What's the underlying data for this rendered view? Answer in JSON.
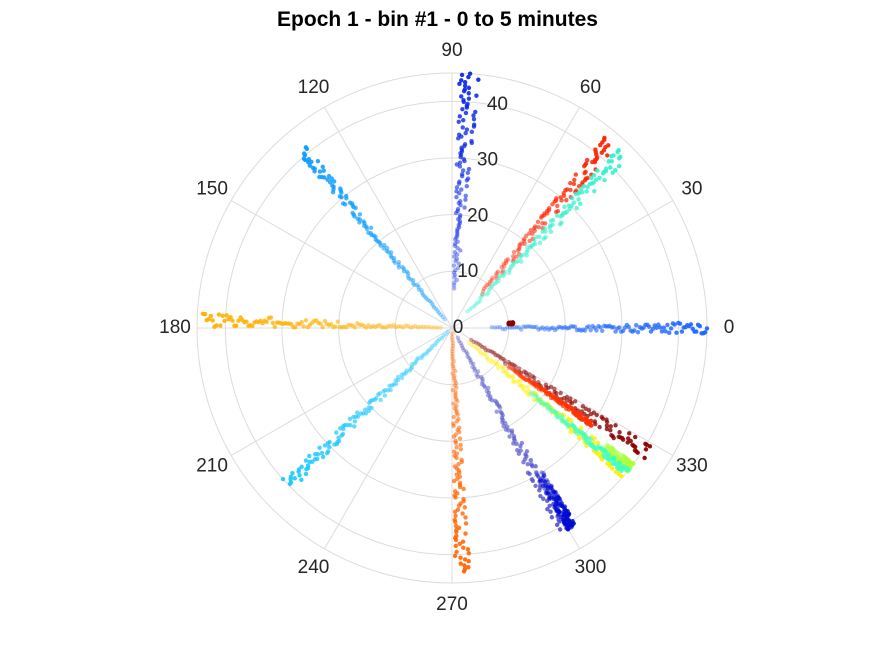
{
  "chart_data": {
    "type": "scatter",
    "subtype": "polar",
    "title": "Epoch 1 - bin #1 - 0 to 5 minutes",
    "angular_axis": {
      "unit": "degrees",
      "direction": "counterclockwise",
      "zero_location": "right",
      "ticks": [
        0,
        30,
        60,
        90,
        120,
        150,
        180,
        210,
        240,
        270,
        300,
        330
      ]
    },
    "radial_axis": {
      "range": [
        0,
        45
      ],
      "ticks": [
        0,
        10,
        20,
        30,
        40
      ],
      "tick_label_angle_deg": 80
    },
    "grid": true,
    "legend": "none",
    "series": [
      {
        "color": "#0a28e6",
        "theta": [
          84,
          86,
          87,
          88
        ],
        "r_start": 7,
        "r_end": 45
      },
      {
        "color": "#ff2200",
        "theta": [
          48,
          49.5,
          50.5,
          51
        ],
        "r_start": 8,
        "r_end": 43
      },
      {
        "color": "#33f0cc",
        "theta": [
          44,
          45.5,
          46,
          47
        ],
        "r_start": 4,
        "r_end": 43
      },
      {
        "color": "#1e66ff",
        "theta": [
          -1,
          0,
          0.5,
          1
        ],
        "r_start": 7,
        "r_end": 45
      },
      {
        "color": "#8b0000",
        "theta": [
          4,
          4.5,
          5
        ],
        "r_start": 10,
        "r_end": 10.8
      },
      {
        "color": "#0c9cff",
        "theta": [
          129,
          130,
          130.5,
          131
        ],
        "r_start": 2,
        "r_end": 41
      },
      {
        "color": "#ffb000",
        "theta": [
          177,
          178,
          178.5,
          179.5
        ],
        "r_start": 2,
        "r_end": 44
      },
      {
        "color": "#1ec8ff",
        "theta": [
          222,
          223,
          224,
          225
        ],
        "r_start": 1,
        "r_end": 40
      },
      {
        "color": "#ff6400",
        "theta": [
          271,
          272,
          273,
          274
        ],
        "r_start": 1,
        "r_end": 43
      },
      {
        "color": "#5050cc",
        "theta": [
          298,
          299,
          300,
          301
        ],
        "r_start": 2,
        "r_end": 41
      },
      {
        "color": "#000ad0",
        "theta": [
          300,
          301,
          302
        ],
        "r_start": 30,
        "r_end": 41
      },
      {
        "color": "#8b0000",
        "theta": [
          326,
          327,
          328,
          329
        ],
        "r_start": 4,
        "r_end": 41
      },
      {
        "color": "#ff3300",
        "theta": [
          325,
          326
        ],
        "r_start": 12,
        "r_end": 30
      },
      {
        "color": "#ffee00",
        "theta": [
          319,
          320,
          321,
          322
        ],
        "r_start": 4,
        "r_end": 40
      },
      {
        "color": "#aaff44",
        "theta": [
          321,
          322,
          323
        ],
        "r_start": 34,
        "r_end": 40
      },
      {
        "color": "#44ffbb",
        "theta": [
          320,
          321
        ],
        "r_start": 18,
        "r_end": 40
      }
    ]
  }
}
